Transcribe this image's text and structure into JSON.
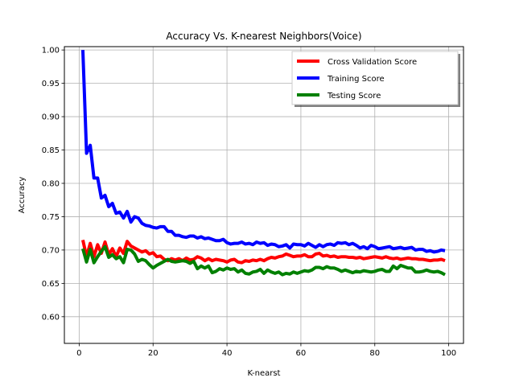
{
  "chart_data": {
    "type": "line",
    "title": "Accuracy Vs. K-nearest Neighbors(Voice)",
    "xlabel": "K-nearst",
    "ylabel": "Accuracy",
    "xlim": [
      -4,
      104
    ],
    "ylim": [
      0.56,
      1.005
    ],
    "xticks": [
      0,
      20,
      40,
      60,
      80,
      100
    ],
    "yticks": [
      0.6,
      0.65,
      0.7,
      0.75,
      0.8,
      0.85,
      0.9,
      0.95,
      1.0
    ],
    "ytick_labels": [
      "0.60",
      "0.65",
      "0.70",
      "0.75",
      "0.80",
      "0.85",
      "0.90",
      "0.95",
      "1.00"
    ],
    "grid": true,
    "legend_position": "top-right",
    "series": [
      {
        "name": "Cross Validation Score",
        "color": "#ff0000",
        "x": [
          1,
          2,
          3,
          4,
          5,
          6,
          7,
          8,
          9,
          10,
          11,
          12,
          13,
          14,
          15,
          16,
          17,
          18,
          19,
          20,
          21,
          22,
          23,
          24,
          25,
          26,
          27,
          28,
          29,
          30,
          31,
          32,
          33,
          34,
          35,
          36,
          37,
          38,
          39,
          40,
          41,
          42,
          43,
          44,
          45,
          46,
          47,
          48,
          49,
          50,
          51,
          52,
          53,
          54,
          55,
          56,
          57,
          58,
          59,
          60,
          61,
          62,
          63,
          64,
          65,
          66,
          67,
          68,
          69,
          70,
          71,
          72,
          73,
          74,
          75,
          76,
          77,
          78,
          79,
          80,
          81,
          82,
          83,
          84,
          85,
          86,
          87,
          88,
          89,
          90,
          91,
          92,
          93,
          94,
          95,
          96,
          97,
          98,
          99
        ],
        "values": [
          0.715,
          0.69,
          0.71,
          0.69,
          0.708,
          0.695,
          0.712,
          0.693,
          0.702,
          0.69,
          0.703,
          0.695,
          0.713,
          0.706,
          0.703,
          0.7,
          0.697,
          0.699,
          0.694,
          0.696,
          0.69,
          0.691,
          0.686,
          0.684,
          0.687,
          0.685,
          0.687,
          0.684,
          0.688,
          0.685,
          0.686,
          0.69,
          0.688,
          0.684,
          0.687,
          0.684,
          0.686,
          0.685,
          0.684,
          0.682,
          0.685,
          0.686,
          0.682,
          0.681,
          0.684,
          0.683,
          0.685,
          0.684,
          0.686,
          0.684,
          0.687,
          0.689,
          0.688,
          0.69,
          0.691,
          0.694,
          0.692,
          0.69,
          0.691,
          0.691,
          0.693,
          0.69,
          0.69,
          0.694,
          0.695,
          0.691,
          0.692,
          0.69,
          0.691,
          0.689,
          0.69,
          0.69,
          0.689,
          0.689,
          0.688,
          0.689,
          0.687,
          0.688,
          0.689,
          0.69,
          0.689,
          0.688,
          0.69,
          0.688,
          0.687,
          0.688,
          0.686,
          0.687,
          0.688,
          0.687,
          0.687,
          0.686,
          0.686,
          0.685,
          0.684,
          0.685,
          0.685,
          0.686,
          0.684
        ]
      },
      {
        "name": "Training Score",
        "color": "#0000ff",
        "x": [
          1,
          2,
          3,
          4,
          5,
          6,
          7,
          8,
          9,
          10,
          11,
          12,
          13,
          14,
          15,
          16,
          17,
          18,
          19,
          20,
          21,
          22,
          23,
          24,
          25,
          26,
          27,
          28,
          29,
          30,
          31,
          32,
          33,
          34,
          35,
          36,
          37,
          38,
          39,
          40,
          41,
          42,
          43,
          44,
          45,
          46,
          47,
          48,
          49,
          50,
          51,
          52,
          53,
          54,
          55,
          56,
          57,
          58,
          59,
          60,
          61,
          62,
          63,
          64,
          65,
          66,
          67,
          68,
          69,
          70,
          71,
          72,
          73,
          74,
          75,
          76,
          77,
          78,
          79,
          80,
          81,
          82,
          83,
          84,
          85,
          86,
          87,
          88,
          89,
          90,
          91,
          92,
          93,
          94,
          95,
          96,
          97,
          98,
          99
        ],
        "values": [
          1.0,
          0.845,
          0.857,
          0.808,
          0.808,
          0.778,
          0.782,
          0.765,
          0.77,
          0.755,
          0.757,
          0.748,
          0.758,
          0.742,
          0.75,
          0.748,
          0.74,
          0.737,
          0.736,
          0.734,
          0.733,
          0.735,
          0.735,
          0.728,
          0.728,
          0.722,
          0.722,
          0.72,
          0.719,
          0.721,
          0.721,
          0.718,
          0.72,
          0.717,
          0.718,
          0.716,
          0.714,
          0.714,
          0.716,
          0.711,
          0.709,
          0.71,
          0.71,
          0.712,
          0.709,
          0.71,
          0.708,
          0.712,
          0.71,
          0.711,
          0.707,
          0.709,
          0.708,
          0.705,
          0.706,
          0.708,
          0.703,
          0.709,
          0.708,
          0.708,
          0.706,
          0.71,
          0.707,
          0.704,
          0.708,
          0.705,
          0.708,
          0.709,
          0.707,
          0.711,
          0.71,
          0.711,
          0.708,
          0.71,
          0.707,
          0.703,
          0.705,
          0.702,
          0.707,
          0.705,
          0.702,
          0.703,
          0.704,
          0.705,
          0.702,
          0.703,
          0.704,
          0.702,
          0.703,
          0.704,
          0.7,
          0.701,
          0.701,
          0.698,
          0.699,
          0.697,
          0.698,
          0.7,
          0.699
        ]
      },
      {
        "name": "Testing Score",
        "color": "#008000",
        "x": [
          1,
          2,
          3,
          4,
          5,
          6,
          7,
          8,
          9,
          10,
          11,
          12,
          13,
          14,
          15,
          16,
          17,
          18,
          19,
          20,
          21,
          22,
          23,
          24,
          25,
          26,
          27,
          28,
          29,
          30,
          31,
          32,
          33,
          34,
          35,
          36,
          37,
          38,
          39,
          40,
          41,
          42,
          43,
          44,
          45,
          46,
          47,
          48,
          49,
          50,
          51,
          52,
          53,
          54,
          55,
          56,
          57,
          58,
          59,
          60,
          61,
          62,
          63,
          64,
          65,
          66,
          67,
          68,
          69,
          70,
          71,
          72,
          73,
          74,
          75,
          76,
          77,
          78,
          79,
          80,
          81,
          82,
          83,
          84,
          85,
          86,
          87,
          88,
          89,
          90,
          91,
          92,
          93,
          94,
          95,
          96,
          97,
          98,
          99
        ],
        "values": [
          0.702,
          0.682,
          0.701,
          0.681,
          0.69,
          0.698,
          0.705,
          0.689,
          0.693,
          0.687,
          0.69,
          0.681,
          0.701,
          0.7,
          0.694,
          0.683,
          0.686,
          0.684,
          0.678,
          0.673,
          0.677,
          0.68,
          0.683,
          0.686,
          0.683,
          0.682,
          0.683,
          0.684,
          0.683,
          0.68,
          0.683,
          0.672,
          0.676,
          0.673,
          0.676,
          0.666,
          0.668,
          0.672,
          0.67,
          0.673,
          0.671,
          0.672,
          0.667,
          0.67,
          0.665,
          0.664,
          0.667,
          0.668,
          0.671,
          0.665,
          0.67,
          0.667,
          0.665,
          0.667,
          0.663,
          0.665,
          0.664,
          0.667,
          0.665,
          0.667,
          0.669,
          0.668,
          0.67,
          0.674,
          0.674,
          0.672,
          0.675,
          0.673,
          0.673,
          0.671,
          0.668,
          0.67,
          0.668,
          0.666,
          0.668,
          0.667,
          0.669,
          0.668,
          0.667,
          0.668,
          0.67,
          0.671,
          0.668,
          0.668,
          0.676,
          0.672,
          0.677,
          0.675,
          0.673,
          0.673,
          0.667,
          0.667,
          0.668,
          0.67,
          0.668,
          0.667,
          0.668,
          0.666,
          0.663
        ]
      }
    ]
  }
}
